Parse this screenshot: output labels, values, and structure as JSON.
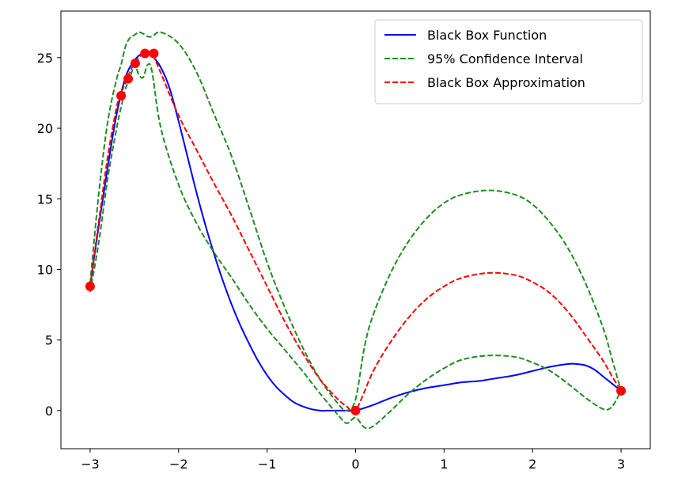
{
  "chart_data": {
    "type": "line",
    "title": "",
    "xlabel": "",
    "ylabel": "",
    "xlim": [
      -3.33,
      3.33
    ],
    "ylim": [
      -2.7,
      28.3
    ],
    "xticks": [
      -3,
      -2,
      -1,
      0,
      1,
      2,
      3
    ],
    "xtick_labels": [
      "−3",
      "−2",
      "−1",
      "0",
      "1",
      "2",
      "3"
    ],
    "yticks": [
      0,
      5,
      10,
      15,
      20,
      25
    ],
    "ytick_labels": [
      "0",
      "5",
      "10",
      "15",
      "20",
      "25"
    ],
    "grid": false,
    "legend_position": "top-right",
    "series": [
      {
        "name": "Black Box Function",
        "style": "solid",
        "color": "#0000ff",
        "x": [
          -3.0,
          -2.9,
          -2.8,
          -2.7,
          -2.6,
          -2.5,
          -2.4,
          -2.3,
          -2.2,
          -2.1,
          -2.0,
          -1.9,
          -1.8,
          -1.7,
          -1.6,
          -1.5,
          -1.4,
          -1.3,
          -1.2,
          -1.1,
          -1.0,
          -0.9,
          -0.8,
          -0.7,
          -0.6,
          -0.5,
          -0.4,
          -0.3,
          -0.2,
          -0.1,
          0.0,
          0.2,
          0.4,
          0.6,
          0.8,
          1.0,
          1.2,
          1.4,
          1.6,
          1.8,
          2.0,
          2.2,
          2.4,
          2.5,
          2.6,
          2.7,
          2.8,
          2.9,
          3.0
        ],
        "y": [
          8.8,
          13.2,
          17.3,
          21.0,
          23.6,
          24.8,
          25.3,
          25.1,
          24.3,
          22.8,
          20.5,
          18.0,
          15.5,
          13.2,
          11.1,
          9.2,
          7.5,
          6.0,
          4.7,
          3.5,
          2.5,
          1.7,
          1.1,
          0.6,
          0.3,
          0.1,
          0.0,
          0.0,
          0.0,
          0.0,
          0.0,
          0.4,
          0.9,
          1.3,
          1.6,
          1.8,
          2.0,
          2.1,
          2.3,
          2.5,
          2.8,
          3.1,
          3.3,
          3.3,
          3.2,
          2.9,
          2.4,
          1.9,
          1.4
        ]
      },
      {
        "name": "95% Confidence Interval",
        "style": "dashed",
        "color": "#228b22",
        "x": [
          -3.0,
          -2.9,
          -2.8,
          -2.7,
          -2.65,
          -2.6,
          -2.55,
          -2.5,
          -2.45,
          -2.4,
          -2.35,
          -2.3,
          -2.2,
          -2.0,
          -1.8,
          -1.6,
          -1.4,
          -1.2,
          -1.0,
          -0.8,
          -0.6,
          -0.4,
          -0.2,
          -0.1,
          0.0,
          0.1,
          0.2,
          0.4,
          0.6,
          0.8,
          1.0,
          1.2,
          1.5,
          1.8,
          2.0,
          2.2,
          2.4,
          2.6,
          2.8,
          2.9,
          3.0
        ],
        "y": [
          9.0,
          15.5,
          20.5,
          23.5,
          24.5,
          25.8,
          26.4,
          26.6,
          26.8,
          26.7,
          26.5,
          26.5,
          26.8,
          26.0,
          24.0,
          21.0,
          18.0,
          14.3,
          10.5,
          7.3,
          4.5,
          2.2,
          0.5,
          0.0,
          0.8,
          4.5,
          6.8,
          9.8,
          12.0,
          13.6,
          14.7,
          15.3,
          15.6,
          15.3,
          14.6,
          13.3,
          11.5,
          9.0,
          5.8,
          3.6,
          1.4
        ]
      },
      {
        "name": "",
        "style": "dashed",
        "color": "#228b22",
        "x": [
          -3.0,
          -2.9,
          -2.8,
          -2.7,
          -2.65,
          -2.6,
          -2.55,
          -2.5,
          -2.45,
          -2.4,
          -2.35,
          -2.3,
          -2.2,
          -2.0,
          -1.8,
          -1.6,
          -1.4,
          -1.2,
          -1.0,
          -0.8,
          -0.6,
          -0.4,
          -0.2,
          -0.1,
          0.0,
          0.1,
          0.2,
          0.4,
          0.6,
          0.8,
          1.0,
          1.2,
          1.5,
          1.8,
          2.0,
          2.2,
          2.4,
          2.6,
          2.8,
          2.9,
          3.0
        ],
        "y": [
          8.4,
          12.0,
          16.5,
          20.0,
          21.5,
          22.8,
          23.5,
          24.5,
          23.8,
          23.6,
          24.5,
          24.0,
          20.0,
          16.0,
          13.3,
          11.2,
          9.4,
          7.5,
          5.8,
          4.3,
          2.8,
          1.2,
          -0.3,
          -0.9,
          -0.5,
          -1.2,
          -1.1,
          0.0,
          1.2,
          2.2,
          3.0,
          3.6,
          3.9,
          3.8,
          3.4,
          2.8,
          1.9,
          0.9,
          0.1,
          0.3,
          1.4
        ]
      },
      {
        "name": "Black Box Approximation",
        "style": "dashed",
        "color": "#ff0000",
        "x": [
          -3.0,
          -2.9,
          -2.8,
          -2.7,
          -2.65,
          -2.6,
          -2.55,
          -2.5,
          -2.45,
          -2.4,
          -2.35,
          -2.3,
          -2.2,
          -2.0,
          -1.8,
          -1.6,
          -1.4,
          -1.2,
          -1.0,
          -0.8,
          -0.6,
          -0.4,
          -0.2,
          -0.1,
          0.0,
          0.2,
          0.4,
          0.6,
          0.8,
          1.0,
          1.2,
          1.5,
          1.8,
          2.0,
          2.2,
          2.4,
          2.6,
          2.8,
          2.9,
          3.0
        ],
        "y": [
          8.8,
          13.5,
          18.0,
          21.5,
          22.5,
          23.2,
          24.0,
          24.6,
          25.0,
          25.3,
          25.3,
          25.3,
          23.9,
          20.9,
          18.5,
          16.1,
          13.8,
          11.3,
          8.8,
          6.3,
          4.1,
          2.2,
          0.8,
          0.3,
          0.0,
          2.8,
          4.9,
          6.6,
          7.9,
          8.8,
          9.4,
          9.75,
          9.6,
          9.1,
          8.3,
          7.0,
          5.3,
          3.5,
          2.4,
          1.4
        ]
      }
    ],
    "points": {
      "color": "#ff0000",
      "x": [
        -3.0,
        -2.65,
        -2.57,
        -2.49,
        -2.38,
        -2.28,
        0.0,
        3.0
      ],
      "y": [
        8.8,
        22.3,
        23.5,
        24.6,
        25.3,
        25.3,
        0.0,
        1.4
      ]
    }
  }
}
